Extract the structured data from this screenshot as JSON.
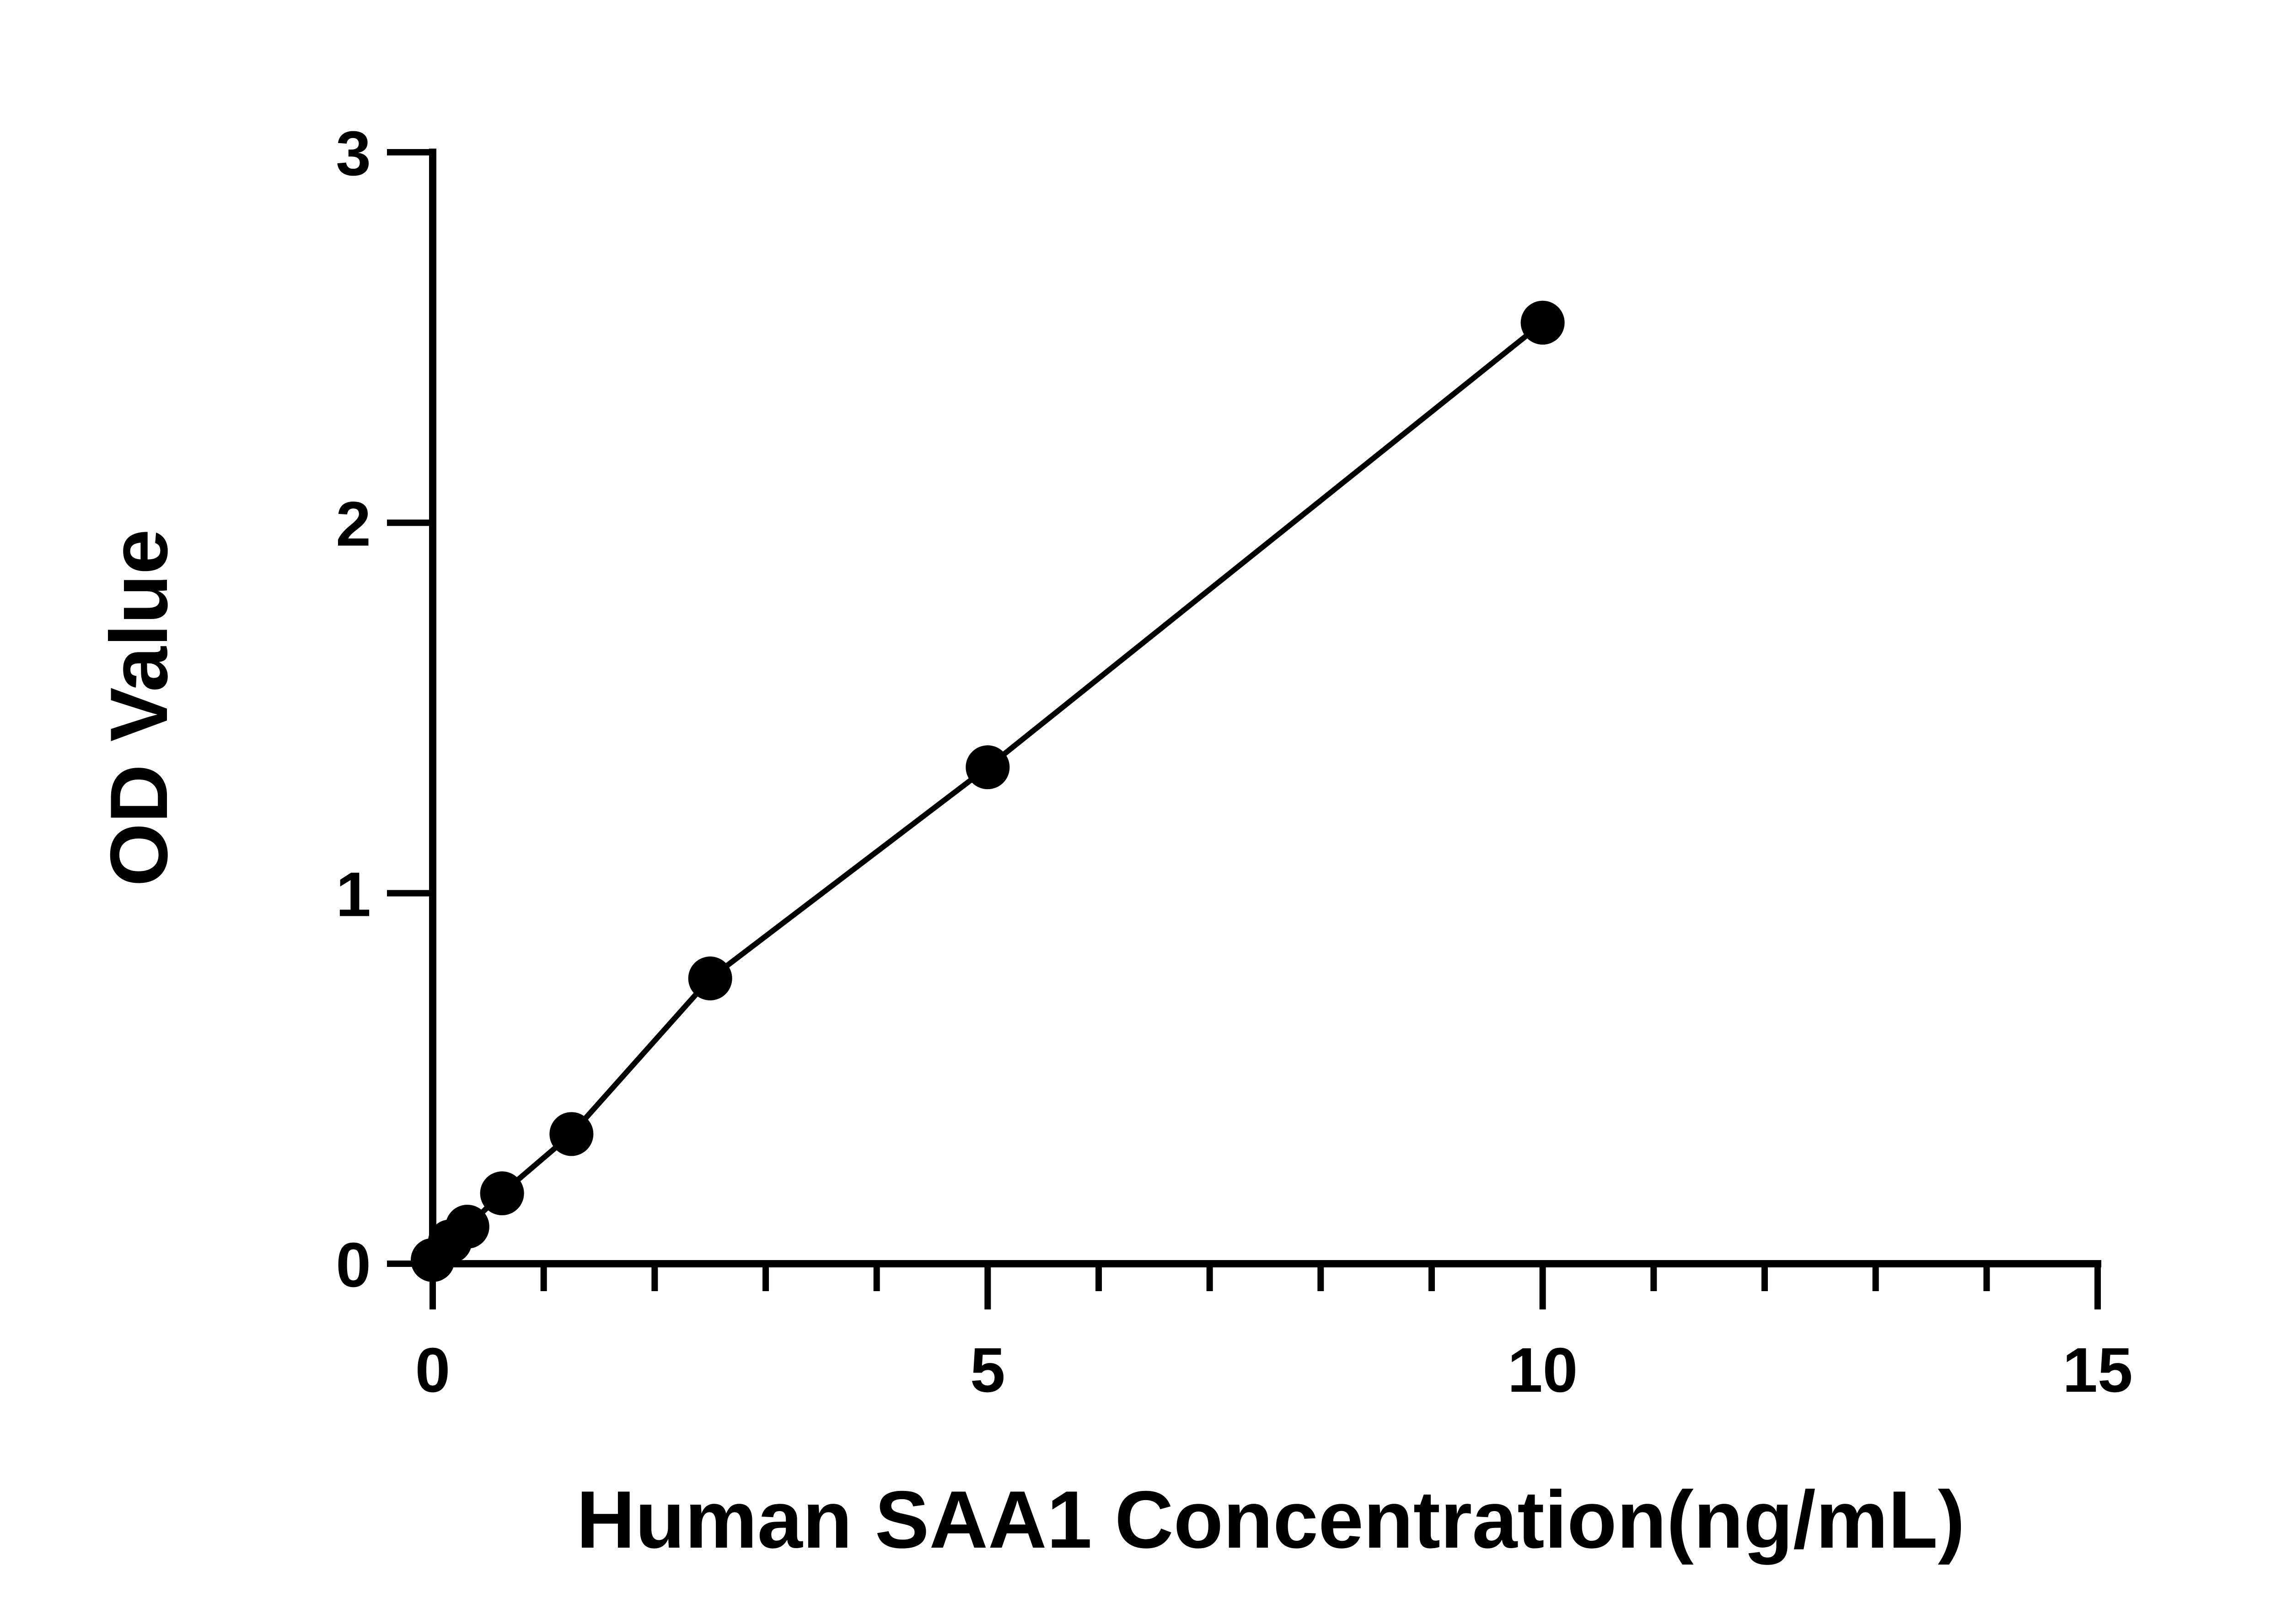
{
  "chart_data": {
    "type": "scatter",
    "title": "",
    "xlabel": "Human SAA1 Concentration(ng/mL)",
    "ylabel": "OD Value",
    "xlim": [
      0,
      15
    ],
    "ylim": [
      0,
      3
    ],
    "x_ticks": [
      "0",
      "5",
      "10",
      "15"
    ],
    "y_ticks": [
      "0",
      "1",
      "2",
      "3"
    ],
    "x_minor_step": 1,
    "grid": false,
    "legend": "none",
    "colors": {
      "line": "#000000",
      "marker": "#000000",
      "axis": "#000000"
    },
    "series": [
      {
        "x": [
          0,
          0.156,
          0.3125,
          0.625,
          1.25,
          2.5,
          5,
          10
        ],
        "y": [
          0.01,
          0.06,
          0.1,
          0.19,
          0.35,
          0.77,
          1.34,
          2.54
        ],
        "marker": "filled-circle",
        "fit_line": true
      }
    ]
  }
}
